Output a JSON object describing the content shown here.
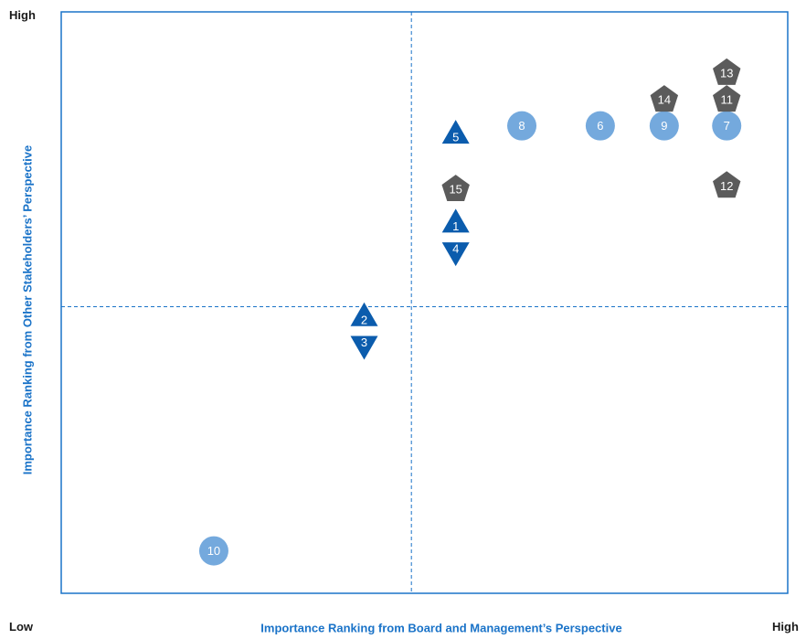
{
  "chart_data": {
    "type": "scatter",
    "title": "",
    "xlabel": "Importance Ranking from Board and Management’s Perspective",
    "ylabel": "Importance Ranking from Other Stakeholders’ Perspective",
    "corner_labels": {
      "y_high": "High",
      "low": "Low",
      "x_high": "High"
    },
    "xlim": [
      0,
      100
    ],
    "ylim": [
      0,
      100
    ],
    "quadrant_divider": {
      "x": 48.2,
      "y": 49.3
    },
    "grid": false,
    "legend": "none",
    "colors": {
      "frame": "#1a73c8",
      "divider": "#1a73c8",
      "circle": "#74a9dd",
      "triangle": "#0b5cad",
      "pentagon": "#5b5b5b",
      "axis_title": "#1a73c8"
    },
    "points": [
      {
        "label": "1",
        "shape": "triangle-up",
        "x": 54.3,
        "y": 63.6
      },
      {
        "label": "4",
        "shape": "triangle-down",
        "x": 54.3,
        "y": 58.8
      },
      {
        "label": "2",
        "shape": "triangle-up",
        "x": 41.7,
        "y": 47.5
      },
      {
        "label": "3",
        "shape": "triangle-down",
        "x": 41.7,
        "y": 42.7
      },
      {
        "label": "5",
        "shape": "triangle-up",
        "x": 54.3,
        "y": 78.9
      },
      {
        "label": "6",
        "shape": "circle",
        "x": 74.2,
        "y": 80.4
      },
      {
        "label": "7",
        "shape": "circle",
        "x": 91.6,
        "y": 80.4
      },
      {
        "label": "8",
        "shape": "circle",
        "x": 63.4,
        "y": 80.4
      },
      {
        "label": "9",
        "shape": "circle",
        "x": 83.0,
        "y": 80.4
      },
      {
        "label": "10",
        "shape": "circle",
        "x": 21.0,
        "y": 7.3
      },
      {
        "label": "11",
        "shape": "pentagon",
        "x": 91.6,
        "y": 85.2
      },
      {
        "label": "12",
        "shape": "pentagon",
        "x": 91.6,
        "y": 70.4
      },
      {
        "label": "13",
        "shape": "pentagon",
        "x": 91.6,
        "y": 89.8
      },
      {
        "label": "14",
        "shape": "pentagon",
        "x": 83.0,
        "y": 85.2
      },
      {
        "label": "15",
        "shape": "pentagon",
        "x": 54.3,
        "y": 69.8
      }
    ]
  }
}
